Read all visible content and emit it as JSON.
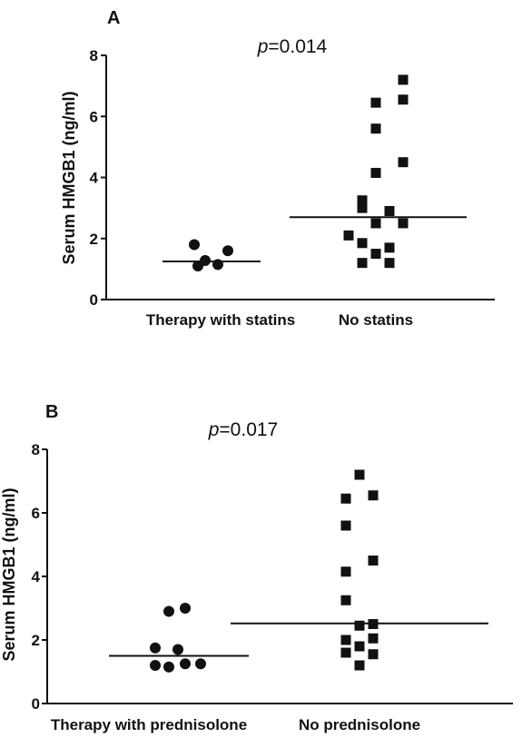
{
  "chart_data": [
    {
      "type": "scatter",
      "panel": "A",
      "annotation": {
        "prefix": "p",
        "value": "=0.014"
      },
      "ylabel": "Serum HMGB1 (ng/ml)",
      "xlabel": "",
      "ylim": [
        0,
        8
      ],
      "yticks": [
        "0",
        "2",
        "4",
        "6",
        "8"
      ],
      "categories": [
        "Therapy with statins",
        "No statins"
      ],
      "groups": [
        {
          "category": "Therapy with statins",
          "marker": "circle",
          "values": [
            1.8,
            1.28,
            1.1,
            1.15,
            1.6
          ],
          "median": 1.25
        },
        {
          "category": "No statins",
          "marker": "square",
          "values": [
            7.2,
            6.45,
            6.55,
            5.6,
            4.15,
            4.5,
            3.25,
            3.0,
            2.9,
            2.5,
            2.5,
            2.1,
            1.85,
            1.7,
            1.5,
            1.2,
            1.2
          ],
          "median": 2.7
        }
      ]
    },
    {
      "type": "scatter",
      "panel": "B",
      "annotation": {
        "prefix": "p",
        "value": "=0.017"
      },
      "ylabel": "Serum HMGB1 (ng/ml)",
      "xlabel": "",
      "ylim": [
        0,
        8
      ],
      "yticks": [
        "0",
        "2",
        "4",
        "6",
        "8"
      ],
      "categories": [
        "Therapy with prednisolone",
        "No prednisolone"
      ],
      "groups": [
        {
          "category": "Therapy with prednisolone",
          "marker": "circle",
          "values": [
            2.9,
            3.0,
            1.75,
            1.7,
            1.25,
            1.15,
            1.25,
            1.2
          ],
          "median": 1.5
        },
        {
          "category": "No prednisolone",
          "marker": "square",
          "values": [
            7.2,
            6.45,
            6.55,
            5.6,
            4.15,
            4.5,
            3.25,
            2.45,
            2.5,
            2.05,
            1.8,
            2.0,
            1.6,
            1.55,
            1.2
          ],
          "median": 2.52
        }
      ]
    }
  ]
}
